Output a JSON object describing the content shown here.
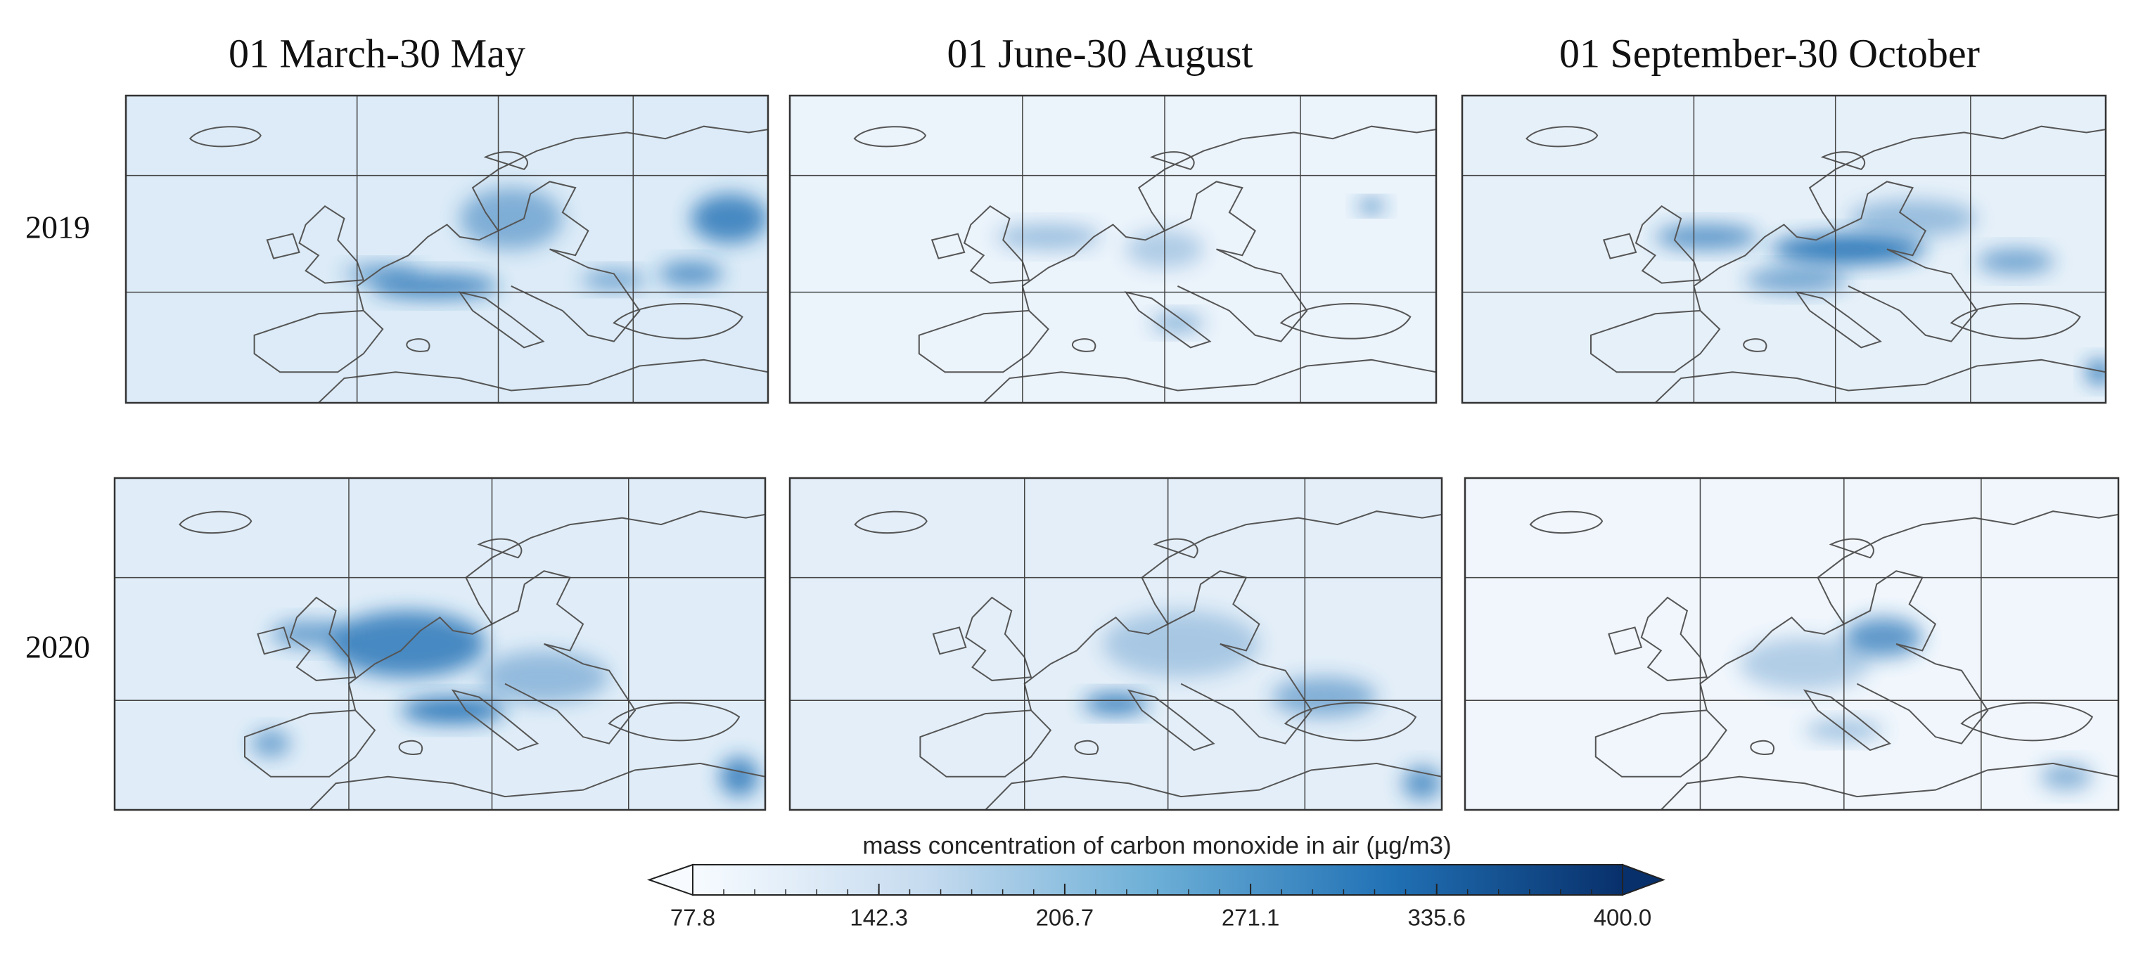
{
  "columns": [
    "01 March-30 May",
    "01 June-30 August",
    "01 September-30 October"
  ],
  "rows": [
    "2019",
    "2020"
  ],
  "colorbar": {
    "title": "mass concentration of carbon monoxide in air (µg/m3)",
    "lim": [
      77.8,
      400
    ],
    "ticks": [
      77.8,
      142.3,
      206.7,
      271.1,
      335.6,
      {
        "value": 400,
        "label": "400.0"
      }
    ],
    "colors": [
      "#f7fbff",
      "#c6dbef",
      "#6baed6",
      "#2171b5",
      "#08306b"
    ]
  }
}
